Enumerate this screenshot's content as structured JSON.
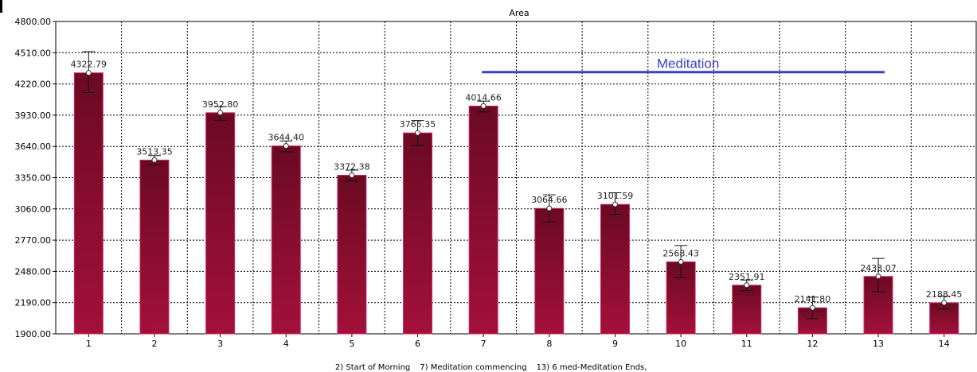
{
  "chart_data": {
    "type": "bar",
    "title": "Area",
    "categories": [
      "1",
      "2",
      "3",
      "4",
      "5",
      "6",
      "7",
      "8",
      "9",
      "10",
      "11",
      "12",
      "13",
      "14"
    ],
    "values": [
      4322.79,
      3513.35,
      3952.8,
      3644.4,
      3372.38,
      3765.35,
      4014.66,
      3064.66,
      3101.59,
      2568.43,
      2351.91,
      2141.8,
      2433.07,
      2188.45
    ],
    "value_labels": [
      "4322.79",
      "3513.35",
      "3952.80",
      "3644.40",
      "3372.38",
      "3765.35",
      "4014.66",
      "3064.66",
      "3101.59",
      "2568.43",
      "2351.91",
      "2141.80",
      "2433.07",
      "2188.45"
    ],
    "error_bars": [
      [
        4140,
        4520
      ],
      [
        3470,
        3555
      ],
      [
        3880,
        4010
      ],
      [
        3590,
        3690
      ],
      [
        3320,
        3420
      ],
      [
        3650,
        3880
      ],
      [
        3960,
        4060
      ],
      [
        2940,
        3190
      ],
      [
        3010,
        3210
      ],
      [
        2420,
        2720
      ],
      [
        2300,
        2400
      ],
      [
        2040,
        2240
      ],
      [
        2290,
        2600
      ],
      [
        2130,
        2250
      ]
    ],
    "ylim": [
      1900,
      4800
    ],
    "yticks": [
      "1900.00",
      "2190.00",
      "2480.00",
      "2770.00",
      "3060.00",
      "3350.00",
      "3640.00",
      "3930.00",
      "4220.00",
      "4510.00",
      "4800.00"
    ],
    "grid": true,
    "annotation": {
      "text": "Meditation",
      "x_start": 7,
      "x_end": 13,
      "y": 4330,
      "color": "#3b3fc4"
    },
    "bar_color_top": "#6b0a22",
    "bar_color_bottom": "#a3103a",
    "bar_edge_color": "#d2286a",
    "footer_notes": [
      "2) Start of Morning",
      "7) Meditation commencing",
      "13) 6 med-Meditation Ends,"
    ]
  }
}
